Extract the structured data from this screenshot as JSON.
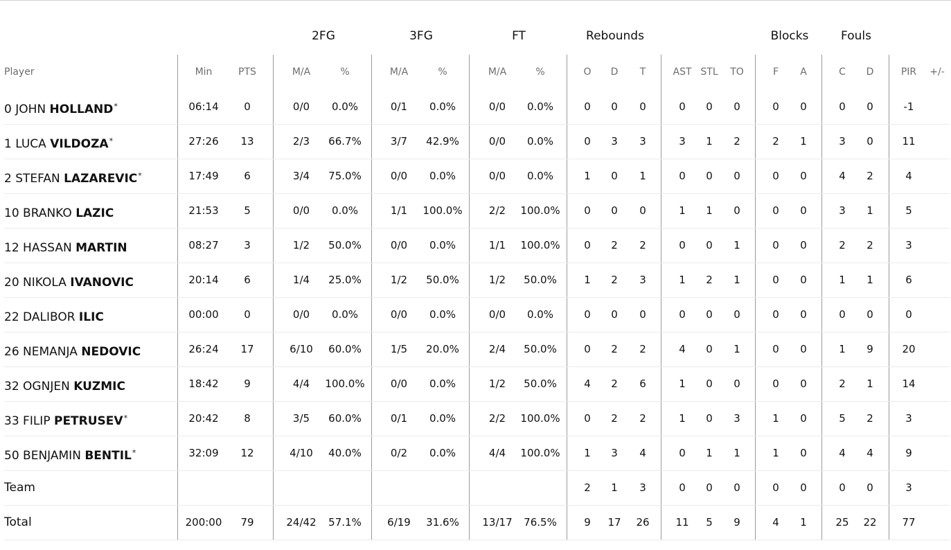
{
  "groups": {
    "fg2": "2FG",
    "fg3": "3FG",
    "ft": "FT",
    "rebounds": "Rebounds",
    "blocks": "Blocks",
    "fouls": "Fouls"
  },
  "headers": {
    "player": "Player",
    "min": "Min",
    "pts": "PTS",
    "fg2_ma": "M/A",
    "fg2_pct": "%",
    "fg3_ma": "M/A",
    "fg3_pct": "%",
    "ft_ma": "M/A",
    "ft_pct": "%",
    "reb_o": "O",
    "reb_d": "D",
    "reb_t": "T",
    "ast": "AST",
    "stl": "STL",
    "to": "TO",
    "blk_f": "F",
    "blk_a": "A",
    "foul_c": "C",
    "foul_d": "D",
    "pir": "PIR",
    "pm": "+/-"
  },
  "players": [
    {
      "num": "0",
      "first": "JOHN",
      "last": "HOLLAND",
      "star": "*",
      "min": "06:14",
      "pts": "0",
      "fg2_ma": "0/0",
      "fg2_pct": "0.0%",
      "fg3_ma": "0/1",
      "fg3_pct": "0.0%",
      "ft_ma": "0/0",
      "ft_pct": "0.0%",
      "reb_o": "0",
      "reb_d": "0",
      "reb_t": "0",
      "ast": "0",
      "stl": "0",
      "to": "0",
      "blk_f": "0",
      "blk_a": "0",
      "foul_c": "0",
      "foul_d": "0",
      "pir": "-1",
      "pm": ""
    },
    {
      "num": "1",
      "first": "LUCA",
      "last": "VILDOZA",
      "star": "*",
      "min": "27:26",
      "pts": "13",
      "fg2_ma": "2/3",
      "fg2_pct": "66.7%",
      "fg3_ma": "3/7",
      "fg3_pct": "42.9%",
      "ft_ma": "0/0",
      "ft_pct": "0.0%",
      "reb_o": "0",
      "reb_d": "3",
      "reb_t": "3",
      "ast": "3",
      "stl": "1",
      "to": "2",
      "blk_f": "2",
      "blk_a": "1",
      "foul_c": "3",
      "foul_d": "0",
      "pir": "11",
      "pm": ""
    },
    {
      "num": "2",
      "first": "STEFAN",
      "last": "LAZAREVIC",
      "star": "*",
      "min": "17:49",
      "pts": "6",
      "fg2_ma": "3/4",
      "fg2_pct": "75.0%",
      "fg3_ma": "0/0",
      "fg3_pct": "0.0%",
      "ft_ma": "0/0",
      "ft_pct": "0.0%",
      "reb_o": "1",
      "reb_d": "0",
      "reb_t": "1",
      "ast": "0",
      "stl": "0",
      "to": "0",
      "blk_f": "0",
      "blk_a": "0",
      "foul_c": "4",
      "foul_d": "2",
      "pir": "4",
      "pm": ""
    },
    {
      "num": "10",
      "first": "BRANKO",
      "last": "LAZIC",
      "star": "",
      "min": "21:53",
      "pts": "5",
      "fg2_ma": "0/0",
      "fg2_pct": "0.0%",
      "fg3_ma": "1/1",
      "fg3_pct": "100.0%",
      "ft_ma": "2/2",
      "ft_pct": "100.0%",
      "reb_o": "0",
      "reb_d": "0",
      "reb_t": "0",
      "ast": "1",
      "stl": "1",
      "to": "0",
      "blk_f": "0",
      "blk_a": "0",
      "foul_c": "3",
      "foul_d": "1",
      "pir": "5",
      "pm": ""
    },
    {
      "num": "12",
      "first": "HASSAN",
      "last": "MARTIN",
      "star": "",
      "min": "08:27",
      "pts": "3",
      "fg2_ma": "1/2",
      "fg2_pct": "50.0%",
      "fg3_ma": "0/0",
      "fg3_pct": "0.0%",
      "ft_ma": "1/1",
      "ft_pct": "100.0%",
      "reb_o": "0",
      "reb_d": "2",
      "reb_t": "2",
      "ast": "0",
      "stl": "0",
      "to": "1",
      "blk_f": "0",
      "blk_a": "0",
      "foul_c": "2",
      "foul_d": "2",
      "pir": "3",
      "pm": ""
    },
    {
      "num": "20",
      "first": "NIKOLA",
      "last": "IVANOVIC",
      "star": "",
      "min": "20:14",
      "pts": "6",
      "fg2_ma": "1/4",
      "fg2_pct": "25.0%",
      "fg3_ma": "1/2",
      "fg3_pct": "50.0%",
      "ft_ma": "1/2",
      "ft_pct": "50.0%",
      "reb_o": "1",
      "reb_d": "2",
      "reb_t": "3",
      "ast": "1",
      "stl": "2",
      "to": "1",
      "blk_f": "0",
      "blk_a": "0",
      "foul_c": "1",
      "foul_d": "1",
      "pir": "6",
      "pm": ""
    },
    {
      "num": "22",
      "first": "DALIBOR",
      "last": "ILIC",
      "star": "",
      "min": "00:00",
      "pts": "0",
      "fg2_ma": "0/0",
      "fg2_pct": "0.0%",
      "fg3_ma": "0/0",
      "fg3_pct": "0.0%",
      "ft_ma": "0/0",
      "ft_pct": "0.0%",
      "reb_o": "0",
      "reb_d": "0",
      "reb_t": "0",
      "ast": "0",
      "stl": "0",
      "to": "0",
      "blk_f": "0",
      "blk_a": "0",
      "foul_c": "0",
      "foul_d": "0",
      "pir": "0",
      "pm": ""
    },
    {
      "num": "26",
      "first": "NEMANJA",
      "last": "NEDOVIC",
      "star": "",
      "min": "26:24",
      "pts": "17",
      "fg2_ma": "6/10",
      "fg2_pct": "60.0%",
      "fg3_ma": "1/5",
      "fg3_pct": "20.0%",
      "ft_ma": "2/4",
      "ft_pct": "50.0%",
      "reb_o": "0",
      "reb_d": "2",
      "reb_t": "2",
      "ast": "4",
      "stl": "0",
      "to": "1",
      "blk_f": "0",
      "blk_a": "0",
      "foul_c": "1",
      "foul_d": "9",
      "pir": "20",
      "pm": ""
    },
    {
      "num": "32",
      "first": "OGNJEN",
      "last": "KUZMIC",
      "star": "",
      "min": "18:42",
      "pts": "9",
      "fg2_ma": "4/4",
      "fg2_pct": "100.0%",
      "fg3_ma": "0/0",
      "fg3_pct": "0.0%",
      "ft_ma": "1/2",
      "ft_pct": "50.0%",
      "reb_o": "4",
      "reb_d": "2",
      "reb_t": "6",
      "ast": "1",
      "stl": "0",
      "to": "0",
      "blk_f": "0",
      "blk_a": "0",
      "foul_c": "2",
      "foul_d": "1",
      "pir": "14",
      "pm": ""
    },
    {
      "num": "33",
      "first": "FILIP",
      "last": "PETRUSEV",
      "star": "*",
      "min": "20:42",
      "pts": "8",
      "fg2_ma": "3/5",
      "fg2_pct": "60.0%",
      "fg3_ma": "0/1",
      "fg3_pct": "0.0%",
      "ft_ma": "2/2",
      "ft_pct": "100.0%",
      "reb_o": "0",
      "reb_d": "2",
      "reb_t": "2",
      "ast": "1",
      "stl": "0",
      "to": "3",
      "blk_f": "1",
      "blk_a": "0",
      "foul_c": "5",
      "foul_d": "2",
      "pir": "3",
      "pm": ""
    },
    {
      "num": "50",
      "first": "BENJAMIN",
      "last": "BENTIL",
      "star": "*",
      "min": "32:09",
      "pts": "12",
      "fg2_ma": "4/10",
      "fg2_pct": "40.0%",
      "fg3_ma": "0/2",
      "fg3_pct": "0.0%",
      "ft_ma": "4/4",
      "ft_pct": "100.0%",
      "reb_o": "1",
      "reb_d": "3",
      "reb_t": "4",
      "ast": "0",
      "stl": "1",
      "to": "1",
      "blk_f": "1",
      "blk_a": "0",
      "foul_c": "4",
      "foul_d": "4",
      "pir": "9",
      "pm": ""
    }
  ],
  "team": {
    "label": "Team",
    "min": "",
    "pts": "",
    "fg2_ma": "",
    "fg2_pct": "",
    "fg3_ma": "",
    "fg3_pct": "",
    "ft_ma": "",
    "ft_pct": "",
    "reb_o": "2",
    "reb_d": "1",
    "reb_t": "3",
    "ast": "0",
    "stl": "0",
    "to": "0",
    "blk_f": "0",
    "blk_a": "0",
    "foul_c": "0",
    "foul_d": "0",
    "pir": "3",
    "pm": ""
  },
  "total": {
    "label": "Total",
    "min": "200:00",
    "pts": "79",
    "fg2_ma": "24/42",
    "fg2_pct": "57.1%",
    "fg3_ma": "6/19",
    "fg3_pct": "31.6%",
    "ft_ma": "13/17",
    "ft_pct": "76.5%",
    "reb_o": "9",
    "reb_d": "17",
    "reb_t": "26",
    "ast": "11",
    "stl": "5",
    "to": "9",
    "blk_f": "4",
    "blk_a": "1",
    "foul_c": "25",
    "foul_d": "22",
    "pir": "77",
    "pm": ""
  }
}
